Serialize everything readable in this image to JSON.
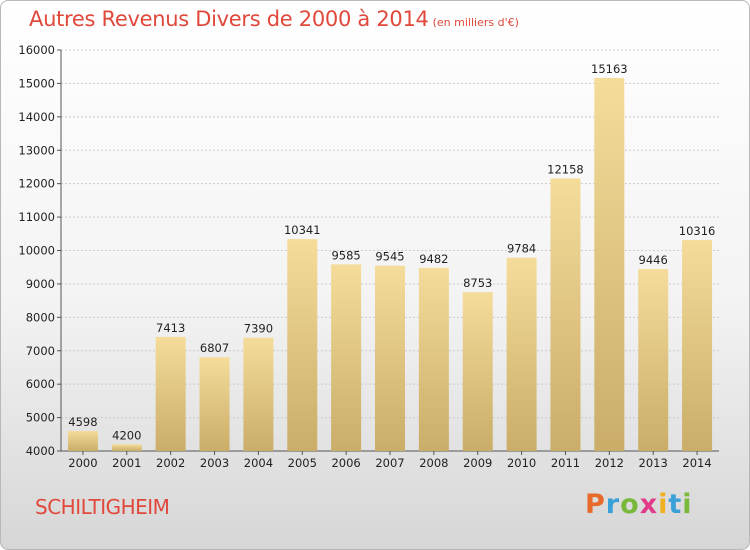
{
  "header": {
    "title": "Autres Revenus Divers de 2000 à 2014",
    "unit": "(en milliers d'€)"
  },
  "footer": {
    "place": "SCHILTIGHEIM",
    "logo": {
      "p": "P",
      "r": "r",
      "o": "o",
      "x": "x",
      "i1": "i",
      "t": "t",
      "i2": "i"
    }
  },
  "colors": {
    "title": "#e0483b",
    "bar_top": "#f5dc9a",
    "bar_bottom": "#c9ad68",
    "grid": "#cccccc"
  },
  "chart_data": {
    "type": "bar",
    "title": "Autres Revenus Divers de 2000 à 2014",
    "xlabel": "",
    "ylabel": "",
    "ylim": [
      4000,
      16000
    ],
    "yticks": [
      4000,
      5000,
      6000,
      7000,
      8000,
      9000,
      10000,
      11000,
      12000,
      13000,
      14000,
      15000,
      16000
    ],
    "grid": true,
    "categories": [
      "2000",
      "2001",
      "2002",
      "2003",
      "2004",
      "2005",
      "2006",
      "2007",
      "2008",
      "2009",
      "2010",
      "2011",
      "2012",
      "2013",
      "2014"
    ],
    "values": [
      4598,
      4200,
      7413,
      6807,
      7390,
      10341,
      9585,
      9545,
      9482,
      8753,
      9784,
      12158,
      15163,
      9446,
      10316
    ]
  }
}
